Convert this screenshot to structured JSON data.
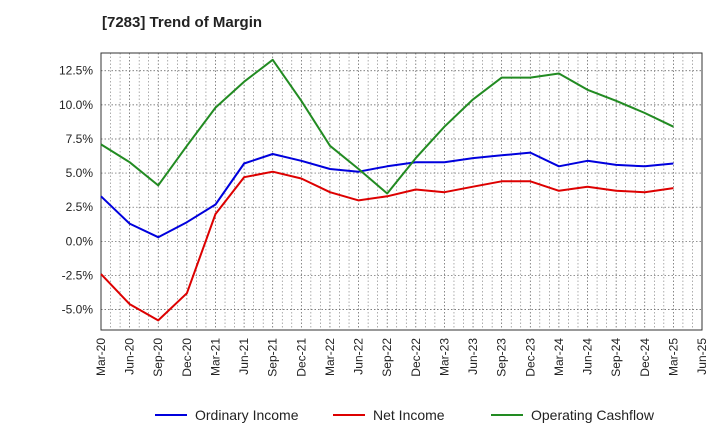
{
  "chart_data": {
    "type": "line",
    "title": "[7283]  Trend of Margin",
    "xlabel": "",
    "ylabel": "",
    "categories": [
      "Mar-20",
      "Jun-20",
      "Sep-20",
      "Dec-20",
      "Mar-21",
      "Jun-21",
      "Sep-21",
      "Dec-21",
      "Mar-22",
      "Jun-22",
      "Sep-22",
      "Dec-22",
      "Mar-23",
      "Jun-23",
      "Sep-23",
      "Dec-23",
      "Mar-24",
      "Jun-24",
      "Sep-24",
      "Dec-24",
      "Mar-25",
      "Jun-25"
    ],
    "ylim": [
      -6.5,
      13.8
    ],
    "yticks": [
      12.5,
      10.0,
      7.5,
      5.0,
      2.5,
      0.0,
      -2.5,
      -5.0
    ],
    "ytick_labels": [
      "12.5%",
      "10.0%",
      "7.5%",
      "5.0%",
      "2.5%",
      "0.0%",
      "-2.5%",
      "-5.0%"
    ],
    "grid": true,
    "legend_position": "bottom",
    "series": [
      {
        "name": "Ordinary Income",
        "color": "#0000dd",
        "values": [
          3.3,
          1.3,
          0.3,
          1.4,
          2.7,
          5.7,
          6.4,
          5.9,
          5.3,
          5.1,
          5.5,
          5.8,
          5.8,
          6.1,
          6.3,
          6.5,
          5.5,
          5.9,
          5.6,
          5.5,
          5.7,
          null
        ]
      },
      {
        "name": "Net Income",
        "color": "#dd0000",
        "values": [
          -2.4,
          -4.6,
          -5.8,
          -3.8,
          2.0,
          4.7,
          5.1,
          4.6,
          3.6,
          3.0,
          3.3,
          3.8,
          3.6,
          4.0,
          4.4,
          4.4,
          3.7,
          4.0,
          3.7,
          3.6,
          3.9,
          null
        ]
      },
      {
        "name": "Operating Cashflow",
        "color": "#228b22",
        "values": [
          7.1,
          5.8,
          4.1,
          7.0,
          9.8,
          11.7,
          13.3,
          10.3,
          7.0,
          5.3,
          3.5,
          6.1,
          8.4,
          10.4,
          12.0,
          12.0,
          12.3,
          11.1,
          10.3,
          9.4,
          8.4,
          null
        ]
      }
    ]
  }
}
